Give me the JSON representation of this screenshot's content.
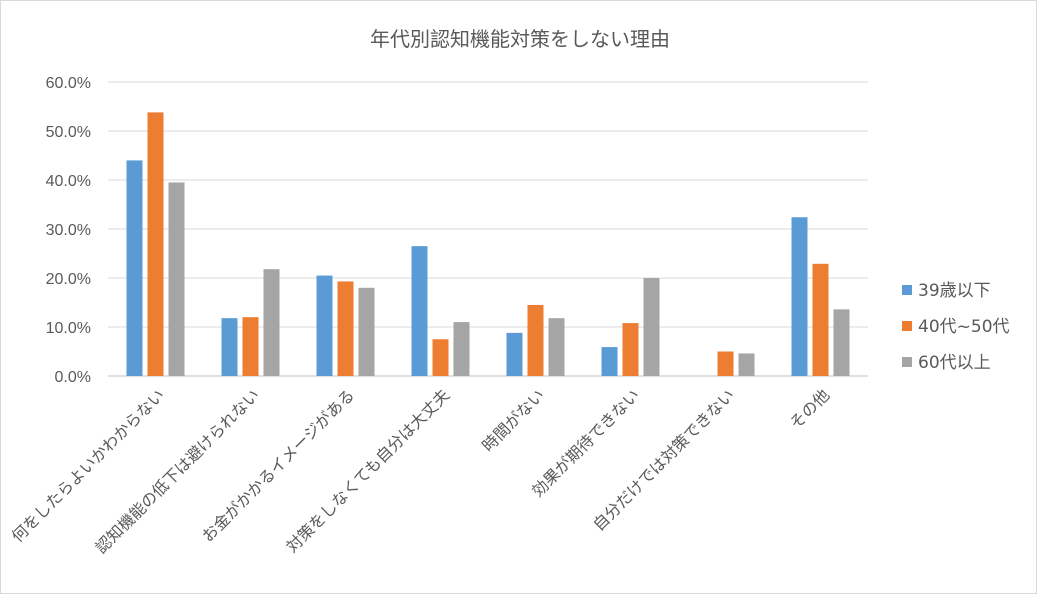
{
  "chart_data": {
    "type": "bar",
    "title": "年代別認知機能対策をしない理由",
    "categories": [
      "何をしたらよいかわからない",
      "認知機能の低下は避けられない",
      "お金がかかるイメージがある",
      "対策をしなくても自分は大丈夫",
      "時間がない",
      "効果が期待できない",
      "自分だけでは対策できない",
      "その他"
    ],
    "series": [
      {
        "name": "39歳以下",
        "color": "#5b9bd5",
        "values": [
          44.0,
          11.8,
          20.5,
          26.5,
          8.8,
          5.9,
          0.0,
          32.4
        ]
      },
      {
        "name": "40代~50代",
        "color": "#ed7d31",
        "values": [
          53.8,
          12.0,
          19.3,
          7.5,
          14.5,
          10.8,
          5.0,
          22.9
        ]
      },
      {
        "name": "60代以上",
        "color": "#a5a5a5",
        "values": [
          39.5,
          21.8,
          18.0,
          11.0,
          11.8,
          20.0,
          4.6,
          13.6
        ]
      }
    ],
    "yticks": [
      "0.0%",
      "10.0%",
      "20.0%",
      "30.0%",
      "40.0%",
      "50.0%",
      "60.0%"
    ],
    "ylim": [
      0,
      60
    ],
    "grid": true,
    "legend_position": "right"
  }
}
